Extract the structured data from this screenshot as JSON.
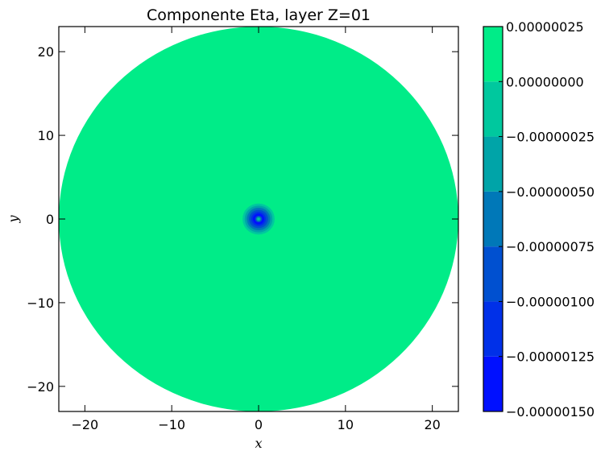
{
  "chart_data": {
    "type": "heatmap",
    "subtype": "filled-contour",
    "title": "Componente Eta, layer Z=01",
    "xlabel": "x",
    "ylabel": "y",
    "xlim": [
      -23,
      23
    ],
    "ylim": [
      -23,
      23
    ],
    "xticks": [
      -20,
      -10,
      0,
      10,
      20
    ],
    "yticks": [
      -20,
      -10,
      0,
      10,
      20
    ],
    "xtick_labels": [
      "−20",
      "−10",
      "0",
      "10",
      "20"
    ],
    "ytick_labels": [
      "−20",
      "−10",
      "0",
      "10",
      "20"
    ],
    "grid": false,
    "domain": {
      "shape": "disk",
      "center": [
        0,
        0
      ],
      "radius": 23
    },
    "feature": {
      "description_values": "localized depression centered at origin",
      "center": [
        0,
        0
      ],
      "min_value": -1.5e-06,
      "background_value": 2e-07
    },
    "colorbar": {
      "levels": [
        -1.5e-06,
        -1.25e-06,
        -1e-06,
        -7.5e-07,
        -5e-07,
        -2.5e-07,
        0.0,
        2.5e-07
      ],
      "tick_labels": [
        "0.00000025",
        "0.00000000",
        "−0.00000025",
        "−0.00000050",
        "−0.00000075",
        "−0.00000100",
        "−0.00000125",
        "−0.00000150"
      ],
      "colors": [
        "#0010ff",
        "#0030e8",
        "#0050d0",
        "#0078b8",
        "#00a4a8",
        "#00c89e",
        "#00ec88"
      ]
    }
  }
}
